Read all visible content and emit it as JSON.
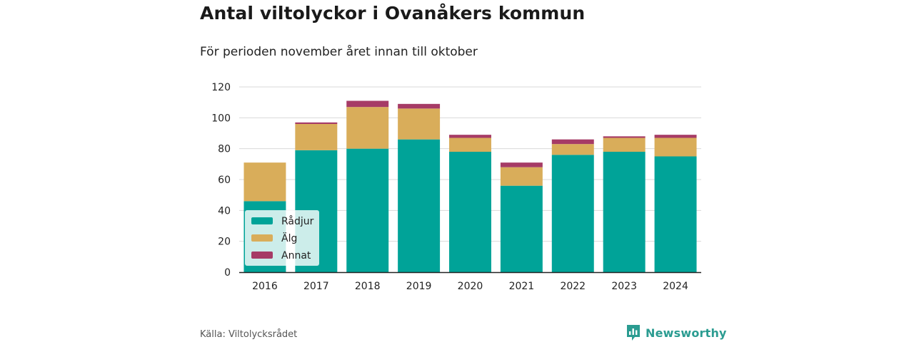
{
  "title": "Antal viltolyckor i Ovanåkers kommun",
  "subtitle": "För perioden november året innan till oktober",
  "source": "Källa: Viltolycksrådet",
  "brand": "Newsworthy",
  "colors": {
    "radjur": "#00a398",
    "alg": "#d9ad5a",
    "annat": "#a63b66",
    "brand": "#2b9c91"
  },
  "chart_data": {
    "type": "bar",
    "stacked": true,
    "categories": [
      "2016",
      "2017",
      "2018",
      "2019",
      "2020",
      "2021",
      "2022",
      "2023",
      "2024"
    ],
    "series": [
      {
        "name": "Rådjur",
        "color": "#00a398",
        "values": [
          46,
          79,
          80,
          86,
          78,
          56,
          76,
          78,
          75
        ]
      },
      {
        "name": "Älg",
        "color": "#d9ad5a",
        "values": [
          25,
          17,
          27,
          20,
          9,
          12,
          7,
          9,
          12
        ]
      },
      {
        "name": "Annat",
        "color": "#a63b66",
        "values": [
          0,
          1,
          4,
          3,
          2,
          3,
          3,
          1,
          2
        ]
      }
    ],
    "yticks": [
      0,
      20,
      40,
      60,
      80,
      100,
      120
    ],
    "ylim": [
      0,
      120
    ],
    "grid": true,
    "legend": "bottom-left"
  }
}
